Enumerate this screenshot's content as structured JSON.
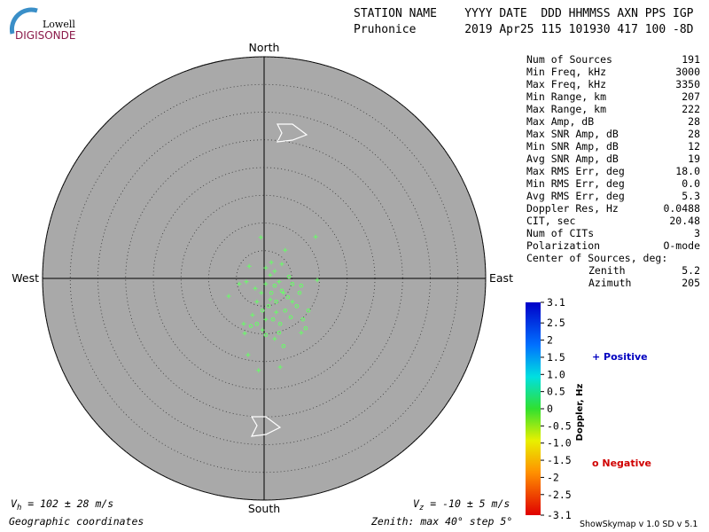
{
  "header": {
    "logo_top": "Lowell",
    "logo_bottom": "DIGISONDE",
    "line1": "STATION NAME    YYYY DATE  DDD HHMMSS AXN PPS IGP",
    "line2": "Pruhonice       2019 Apr25 115 101930 417 100 -8D"
  },
  "stats": [
    [
      "Num of Sources",
      "191"
    ],
    [
      "Min Freq, kHz",
      "3000"
    ],
    [
      "Max Freq, kHz",
      "3350"
    ],
    [
      "Min Range, km",
      "207"
    ],
    [
      "Max Range, km",
      "222"
    ],
    [
      "Max Amp, dB",
      "28"
    ],
    [
      "Max SNR Amp, dB",
      "28"
    ],
    [
      "Min SNR Amp, dB",
      "12"
    ],
    [
      "Avg SNR Amp, dB",
      "19"
    ],
    [
      "Max RMS Err, deg",
      "18.0"
    ],
    [
      "Min RMS Err, deg",
      "0.0"
    ],
    [
      "Avg RMS Err, deg",
      "5.3"
    ],
    [
      "Doppler Res, Hz",
      "0.0488"
    ],
    [
      "CIT, sec",
      "20.48"
    ],
    [
      "Num of CITs",
      "3"
    ],
    [
      "Polarization",
      "O-mode"
    ]
  ],
  "center": {
    "title": "Center of Sources, deg:",
    "zenith_label": "Zenith",
    "zenith": "5.2",
    "azimuth_label": "Azimuth",
    "azimuth": "205"
  },
  "skymap": {
    "north": "North",
    "south": "South",
    "east": "East",
    "west": "West",
    "rlim": [
      0,
      40
    ],
    "rings": [
      5,
      10,
      15,
      20,
      25,
      30,
      35,
      40
    ],
    "positive": [
      [
        -0.6,
        7.4
      ],
      [
        3.8,
        5.1
      ],
      [
        9.3,
        7.5
      ],
      [
        -2.7,
        2.2
      ],
      [
        1.3,
        2.9
      ],
      [
        0.3,
        1.9
      ],
      [
        1.9,
        1.3
      ],
      [
        -3.2,
        -0.6
      ],
      [
        -4.5,
        -1.0
      ],
      [
        -1.6,
        -1.8
      ],
      [
        0.3,
        -1.0
      ],
      [
        2.7,
        -0.6
      ],
      [
        -6.4,
        -3.2
      ],
      [
        -1.3,
        -4.2
      ],
      [
        1.1,
        -3.8
      ],
      [
        3.5,
        -2.6
      ],
      [
        -2.1,
        -6.6
      ],
      [
        0.3,
        -7.4
      ],
      [
        2.2,
        -6.1
      ],
      [
        -3.5,
        -9.9
      ],
      [
        -0.3,
        -9.3
      ],
      [
        -2.9,
        -13.8
      ],
      [
        -1.0,
        -16.6
      ],
      [
        2.9,
        -16.0
      ],
      [
        6.7,
        -9.8
      ],
      [
        9.6,
        -0.3
      ],
      [
        5.1,
        -4.2
      ],
      [
        1.1,
        0.6
      ],
      [
        -0.5,
        -2.6
      ],
      [
        -3.7,
        -8.2
      ],
      [
        3.2,
        2.6
      ],
      [
        1.9,
        -10.9
      ]
    ],
    "negative": [
      [
        1.9,
        -1.3
      ],
      [
        3.2,
        -2.2
      ],
      [
        4.3,
        -3.4
      ],
      [
        0.8,
        -5.0
      ],
      [
        2.2,
        -4.2
      ],
      [
        5.1,
        -1.0
      ],
      [
        6.4,
        -2.6
      ],
      [
        3.8,
        -5.8
      ],
      [
        1.6,
        -7.4
      ],
      [
        -0.3,
        -5.8
      ],
      [
        2.9,
        -8.2
      ],
      [
        4.8,
        -7.0
      ],
      [
        7.5,
        -9.0
      ],
      [
        0.3,
        -10.2
      ],
      [
        5.9,
        -5.0
      ],
      [
        2.7,
        -9.8
      ],
      [
        -1.3,
        -8.2
      ],
      [
        6.7,
        -1.3
      ],
      [
        8.0,
        -5.8
      ],
      [
        4.5,
        0.3
      ],
      [
        1.3,
        -2.6
      ],
      [
        3.5,
        -12.2
      ],
      [
        -2.4,
        -8.6
      ],
      [
        7.0,
        -7.4
      ]
    ]
  },
  "colorbar": {
    "title": "Doppler, Hz",
    "range": [
      -3.1,
      3.1
    ],
    "ticks": [
      3.1,
      2.5,
      2,
      1.5,
      {
        "value": 1,
        "label": "1.0"
      },
      0.5,
      0,
      -0.5,
      {
        "value": -1,
        "label": "-1.0"
      },
      -1.5,
      -2,
      -2.5,
      -3.1
    ],
    "positive": "+ Positive",
    "negative": "o Negative"
  },
  "footer": {
    "vh_v": "V",
    "vh_sub": "h",
    "vh_rest": " = 102 ± 28 m/s",
    "vz_v": "V",
    "vz_sub": "z",
    "vz_rest": " = -10 ± 5 m/s",
    "coords": "Geographic coordinates",
    "zenith": "Zenith: max 40°  step 5°",
    "version": "ShowSkymap v 1.0  SD v 5.1"
  }
}
